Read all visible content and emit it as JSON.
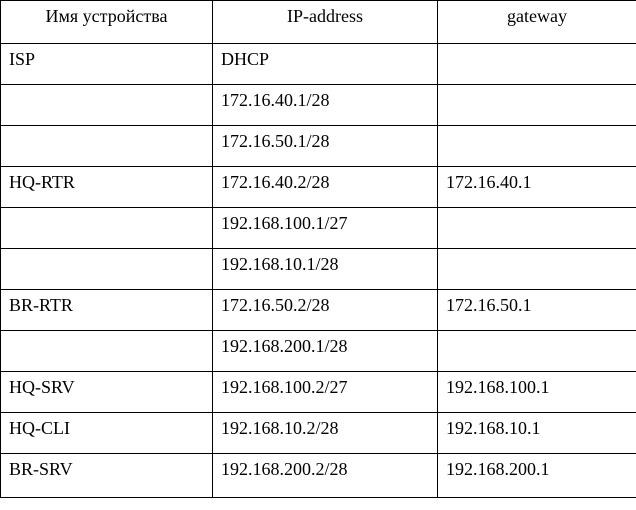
{
  "table": {
    "headers": [
      "Имя устройства",
      "IP-address",
      "gateway"
    ],
    "rows": [
      [
        "ISP",
        "DHCP",
        ""
      ],
      [
        "",
        "172.16.40.1/28",
        ""
      ],
      [
        "",
        "172.16.50.1/28",
        ""
      ],
      [
        "HQ-RTR",
        "172.16.40.2/28",
        "172.16.40.1"
      ],
      [
        "",
        "192.168.100.1/27",
        ""
      ],
      [
        "",
        "192.168.10.1/28",
        ""
      ],
      [
        "BR-RTR",
        "172.16.50.2/28",
        "172.16.50.1"
      ],
      [
        "",
        "192.168.200.1/28",
        ""
      ],
      [
        "HQ-SRV",
        "192.168.100.2/27",
        "192.168.100.1"
      ],
      [
        "HQ-CLI",
        "192.168.10.2/28",
        "192.168.10.1"
      ],
      [
        "BR-SRV",
        "192.168.200.2/28",
        "192.168.200.1"
      ]
    ]
  }
}
